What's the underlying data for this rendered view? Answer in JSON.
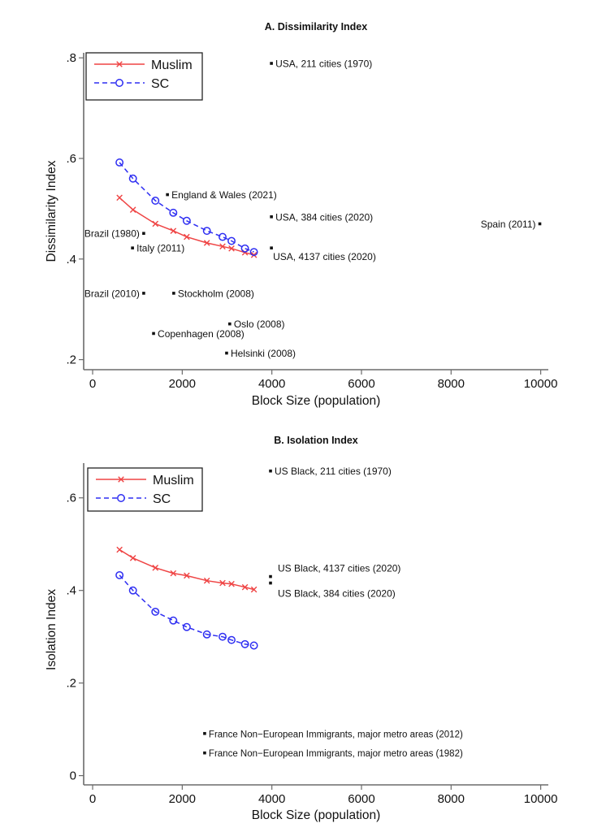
{
  "chart_data": [
    {
      "id": "A",
      "type": "line",
      "title": "A. Dissimilarity Index",
      "xlabel": "Block Size (population)",
      "ylabel": "Dissimilarity Index",
      "xlim": [
        -200,
        10170
      ],
      "ylim": [
        0.18,
        0.81
      ],
      "xticks": [
        0,
        2000,
        4000,
        6000,
        8000,
        10000
      ],
      "xtick_labels": [
        "0",
        "2000",
        "4000",
        "6000",
        "8000",
        "10000"
      ],
      "yticks": [
        0.2,
        0.4,
        0.6,
        0.8
      ],
      "ytick_labels": [
        ".2",
        ".4",
        ".6",
        ".8"
      ],
      "grid": false,
      "legend_position": "top-left",
      "x": [
        600,
        900,
        1400,
        1800,
        2100,
        2550,
        2900,
        3100,
        3400,
        3600
      ],
      "series": [
        {
          "name": "Muslim",
          "color": "#ef4444",
          "style": "solid",
          "marker": "x",
          "values": [
            0.522,
            0.498,
            0.47,
            0.456,
            0.444,
            0.432,
            0.425,
            0.421,
            0.413,
            0.408
          ]
        },
        {
          "name": "SC",
          "color": "#2e2ef2",
          "style": "dashed",
          "marker": "circle",
          "values": [
            0.592,
            0.56,
            0.516,
            0.492,
            0.476,
            0.456,
            0.444,
            0.436,
            0.421,
            0.414
          ]
        }
      ],
      "annotations": [
        {
          "label": "USA, 211 cities (1970)",
          "x": 3990,
          "y": 0.789,
          "side": "right"
        },
        {
          "label": "England & Wales (2021)",
          "x": 1670,
          "y": 0.528,
          "side": "right"
        },
        {
          "label": "USA, 384 cities (2020)",
          "x": 3990,
          "y": 0.484,
          "side": "right"
        },
        {
          "label": "Spain (2011)",
          "x": 9980,
          "y": 0.47,
          "side": "left"
        },
        {
          "label": "Brazil (1980)",
          "x": 1140,
          "y": 0.451,
          "side": "left"
        },
        {
          "label": "Italy (2011)",
          "x": 890,
          "y": 0.422,
          "side": "right"
        },
        {
          "label": "USA, 4137 cities (2020)",
          "x": 3990,
          "y": 0.422,
          "side": "below-right"
        },
        {
          "label": "Brazil (2010)",
          "x": 1140,
          "y": 0.332,
          "side": "left"
        },
        {
          "label": "Stockholm (2008)",
          "x": 1810,
          "y": 0.332,
          "side": "right"
        },
        {
          "label": "Oslo (2008)",
          "x": 3060,
          "y": 0.271,
          "side": "right"
        },
        {
          "label": "Copenhagen (2008)",
          "x": 1360,
          "y": 0.252,
          "side": "right"
        },
        {
          "label": "Helsinki (2008)",
          "x": 2990,
          "y": 0.213,
          "side": "right"
        }
      ]
    },
    {
      "id": "B",
      "type": "line",
      "title": "B. Isolation Index",
      "xlabel": "Block Size (population)",
      "ylabel": "Isolation Index",
      "xlim": [
        -200,
        10170
      ],
      "ylim": [
        -0.02,
        0.675
      ],
      "xticks": [
        0,
        2000,
        4000,
        6000,
        8000,
        10000
      ],
      "xtick_labels": [
        "0",
        "2000",
        "4000",
        "6000",
        "8000",
        "10000"
      ],
      "yticks": [
        0,
        0.2,
        0.4,
        0.6
      ],
      "ytick_labels": [
        "0",
        ".2",
        ".4",
        ".6"
      ],
      "grid": false,
      "legend_position": "top-left",
      "x": [
        600,
        900,
        1400,
        1800,
        2100,
        2550,
        2900,
        3100,
        3400,
        3600
      ],
      "series": [
        {
          "name": "Muslim",
          "color": "#ef4444",
          "style": "solid",
          "marker": "x",
          "values": [
            0.488,
            0.47,
            0.449,
            0.437,
            0.432,
            0.421,
            0.416,
            0.414,
            0.407,
            0.402
          ]
        },
        {
          "name": "SC",
          "color": "#2e2ef2",
          "style": "dashed",
          "marker": "circle",
          "values": [
            0.433,
            0.4,
            0.354,
            0.335,
            0.321,
            0.305,
            0.3,
            0.293,
            0.284,
            0.281
          ]
        }
      ],
      "annotations": [
        {
          "label": "US Black, 211 cities (1970)",
          "x": 3970,
          "y": 0.658,
          "side": "right"
        },
        {
          "label": "US Black, 4137 cities (2020)",
          "x": 3970,
          "y": 0.43,
          "side": "above-right"
        },
        {
          "label": "US Black, 384 cities (2020)",
          "x": 3970,
          "y": 0.416,
          "side": "below-right"
        },
        {
          "label": "France Non−European Immigrants, major metro areas (2012)",
          "x": 2500,
          "y": 0.091,
          "side": "right"
        },
        {
          "label": "France Non−European Immigrants, major metro areas (1982)",
          "x": 2500,
          "y": 0.049,
          "side": "right"
        }
      ]
    }
  ]
}
